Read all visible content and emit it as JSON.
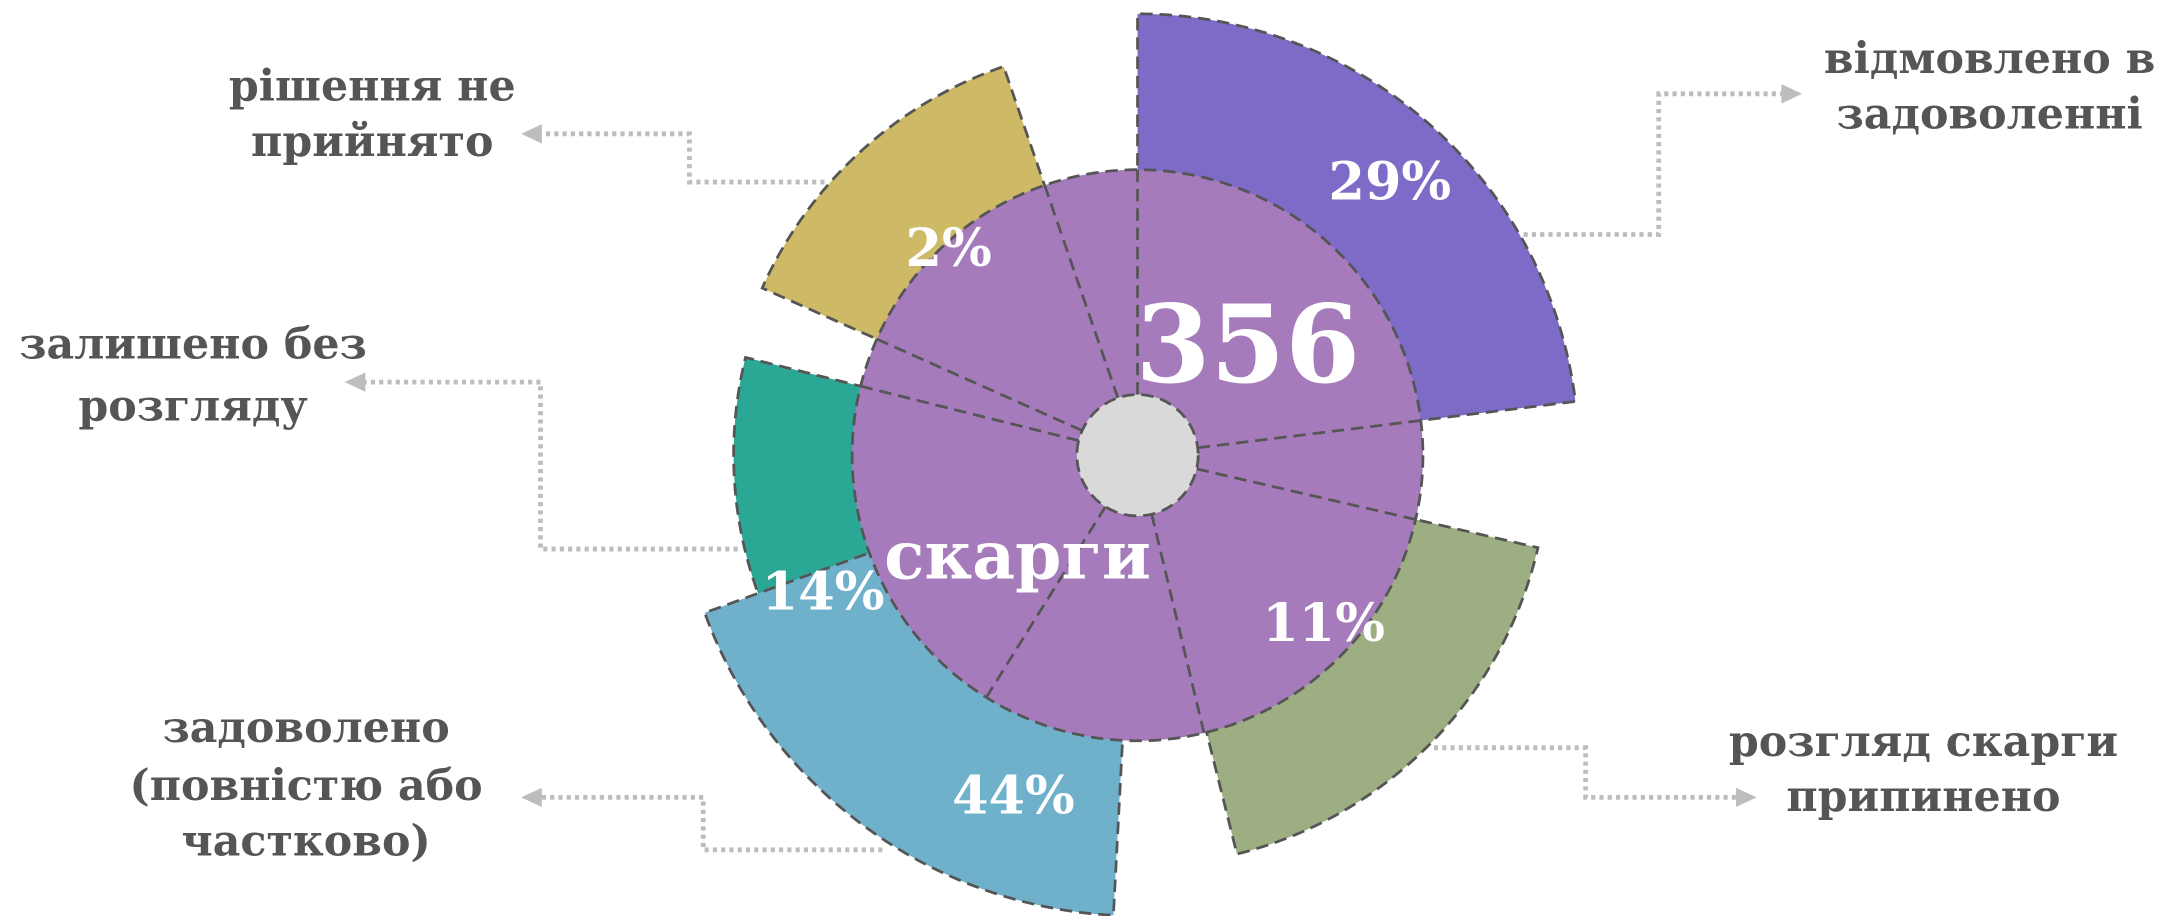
{
  "center": {
    "value": "356",
    "label": "скарги"
  },
  "segments": [
    {
      "label": [
        "рішення не",
        "прийнято"
      ],
      "value": "2%"
    },
    {
      "label": [
        "відмовлено в",
        "задоволенні"
      ],
      "value": "29%"
    },
    {
      "label": [
        "залишено без",
        "розгляду"
      ],
      "value": "14%"
    },
    {
      "label": [
        "задоволено",
        "(повністю або",
        "частково)"
      ],
      "value": "44%"
    },
    {
      "label": [
        "розгляд скарги",
        "припинено"
      ],
      "value": "11%"
    }
  ]
}
